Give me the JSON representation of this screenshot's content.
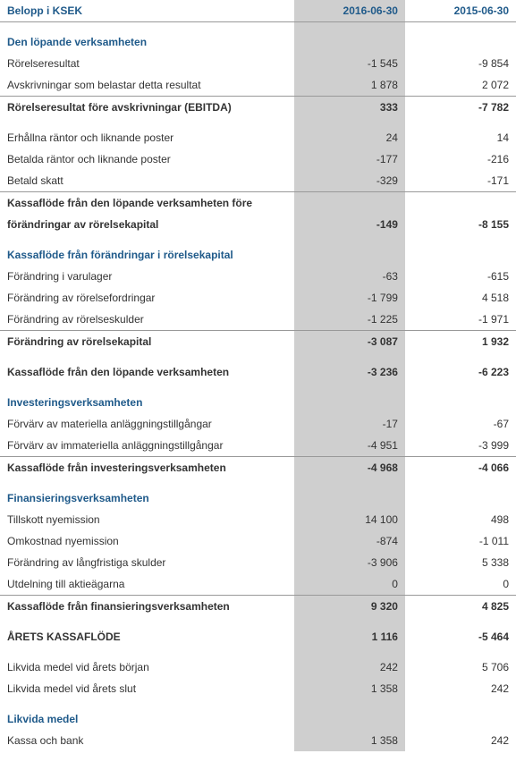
{
  "header": {
    "label": "Belopp i KSEK",
    "col1": "2016-06-30",
    "col2": "2015-06-30"
  },
  "colors": {
    "header_text": "#1f5a8a",
    "section_text": "#1f5a8a",
    "highlight_bg": "#cfcfcf",
    "border": "#999999",
    "text": "#333333"
  },
  "rows": [
    {
      "type": "spacer"
    },
    {
      "type": "section",
      "label": "Den löpande verksamheten"
    },
    {
      "type": "data",
      "label": "Rörelseresultat",
      "v1": "-1 545",
      "v2": "-9 854"
    },
    {
      "type": "data",
      "label": "Avskrivningar som belastar detta resultat",
      "v1": "1 878",
      "v2": "2 072"
    },
    {
      "type": "total",
      "label": "Rörelseresultat före avskrivningar (EBITDA)",
      "v1": "333",
      "v2": "-7 782",
      "border": true
    },
    {
      "type": "spacer"
    },
    {
      "type": "data",
      "label": "Erhållna räntor och liknande poster",
      "v1": "24",
      "v2": "14"
    },
    {
      "type": "data",
      "label": "Betalda räntor och liknande poster",
      "v1": "-177",
      "v2": "-216"
    },
    {
      "type": "data",
      "label": "Betald skatt",
      "v1": "-329",
      "v2": "-171"
    },
    {
      "type": "total",
      "label": "Kassaflöde från den löpande verksamheten före",
      "v1": "",
      "v2": "",
      "border": true
    },
    {
      "type": "total",
      "label": "förändringar av rörelsekapital",
      "v1": "-149",
      "v2": "-8 155"
    },
    {
      "type": "spacer"
    },
    {
      "type": "section",
      "label": "Kassaflöde från förändringar i rörelsekapital"
    },
    {
      "type": "data",
      "label": "Förändring i varulager",
      "v1": "-63",
      "v2": "-615"
    },
    {
      "type": "data",
      "label": "Förändring av rörelsefordringar",
      "v1": "-1 799",
      "v2": "4 518"
    },
    {
      "type": "data",
      "label": "Förändring av rörelseskulder",
      "v1": "-1 225",
      "v2": "-1 971"
    },
    {
      "type": "total",
      "label": "Förändring av rörelsekapital",
      "v1": "-3 087",
      "v2": "1 932",
      "border": true
    },
    {
      "type": "spacer"
    },
    {
      "type": "total",
      "label": "Kassaflöde från den löpande verksamheten",
      "v1": "-3 236",
      "v2": "-6 223"
    },
    {
      "type": "spacer"
    },
    {
      "type": "section",
      "label": "Investeringsverksamheten"
    },
    {
      "type": "data",
      "label": "Förvärv av materiella anläggningstillgångar",
      "v1": "-17",
      "v2": "-67"
    },
    {
      "type": "data",
      "label": "Förvärv av immateriella anläggningstillgångar",
      "v1": "-4 951",
      "v2": "-3 999"
    },
    {
      "type": "total",
      "label": "Kassaflöde från investeringsverksamheten",
      "v1": "-4 968",
      "v2": "-4 066",
      "border": true
    },
    {
      "type": "spacer"
    },
    {
      "type": "section",
      "label": "Finansieringsverksamheten"
    },
    {
      "type": "data",
      "label": "Tillskott nyemission",
      "v1": "14 100",
      "v2": "498"
    },
    {
      "type": "data",
      "label": "Omkostnad nyemission",
      "v1": "-874",
      "v2": "-1 011"
    },
    {
      "type": "data",
      "label": "Förändring av långfristiga skulder",
      "v1": "-3 906",
      "v2": "5 338"
    },
    {
      "type": "data",
      "label": "Utdelning till aktieägarna",
      "v1": "0",
      "v2": "0"
    },
    {
      "type": "total",
      "label": "Kassaflöde från finansieringsverksamheten",
      "v1": "9 320",
      "v2": "4 825",
      "border": true
    },
    {
      "type": "spacer"
    },
    {
      "type": "total",
      "label": "ÅRETS KASSAFLÖDE",
      "v1": "1 116",
      "v2": "-5 464"
    },
    {
      "type": "spacer"
    },
    {
      "type": "data",
      "label": "Likvida medel vid årets början",
      "v1": "242",
      "v2": "5 706"
    },
    {
      "type": "data",
      "label": "Likvida medel vid årets slut",
      "v1": "1 358",
      "v2": "242"
    },
    {
      "type": "spacer"
    },
    {
      "type": "section",
      "label": "Likvida medel"
    },
    {
      "type": "data",
      "label": "Kassa och bank",
      "v1": "1 358",
      "v2": "242"
    }
  ]
}
